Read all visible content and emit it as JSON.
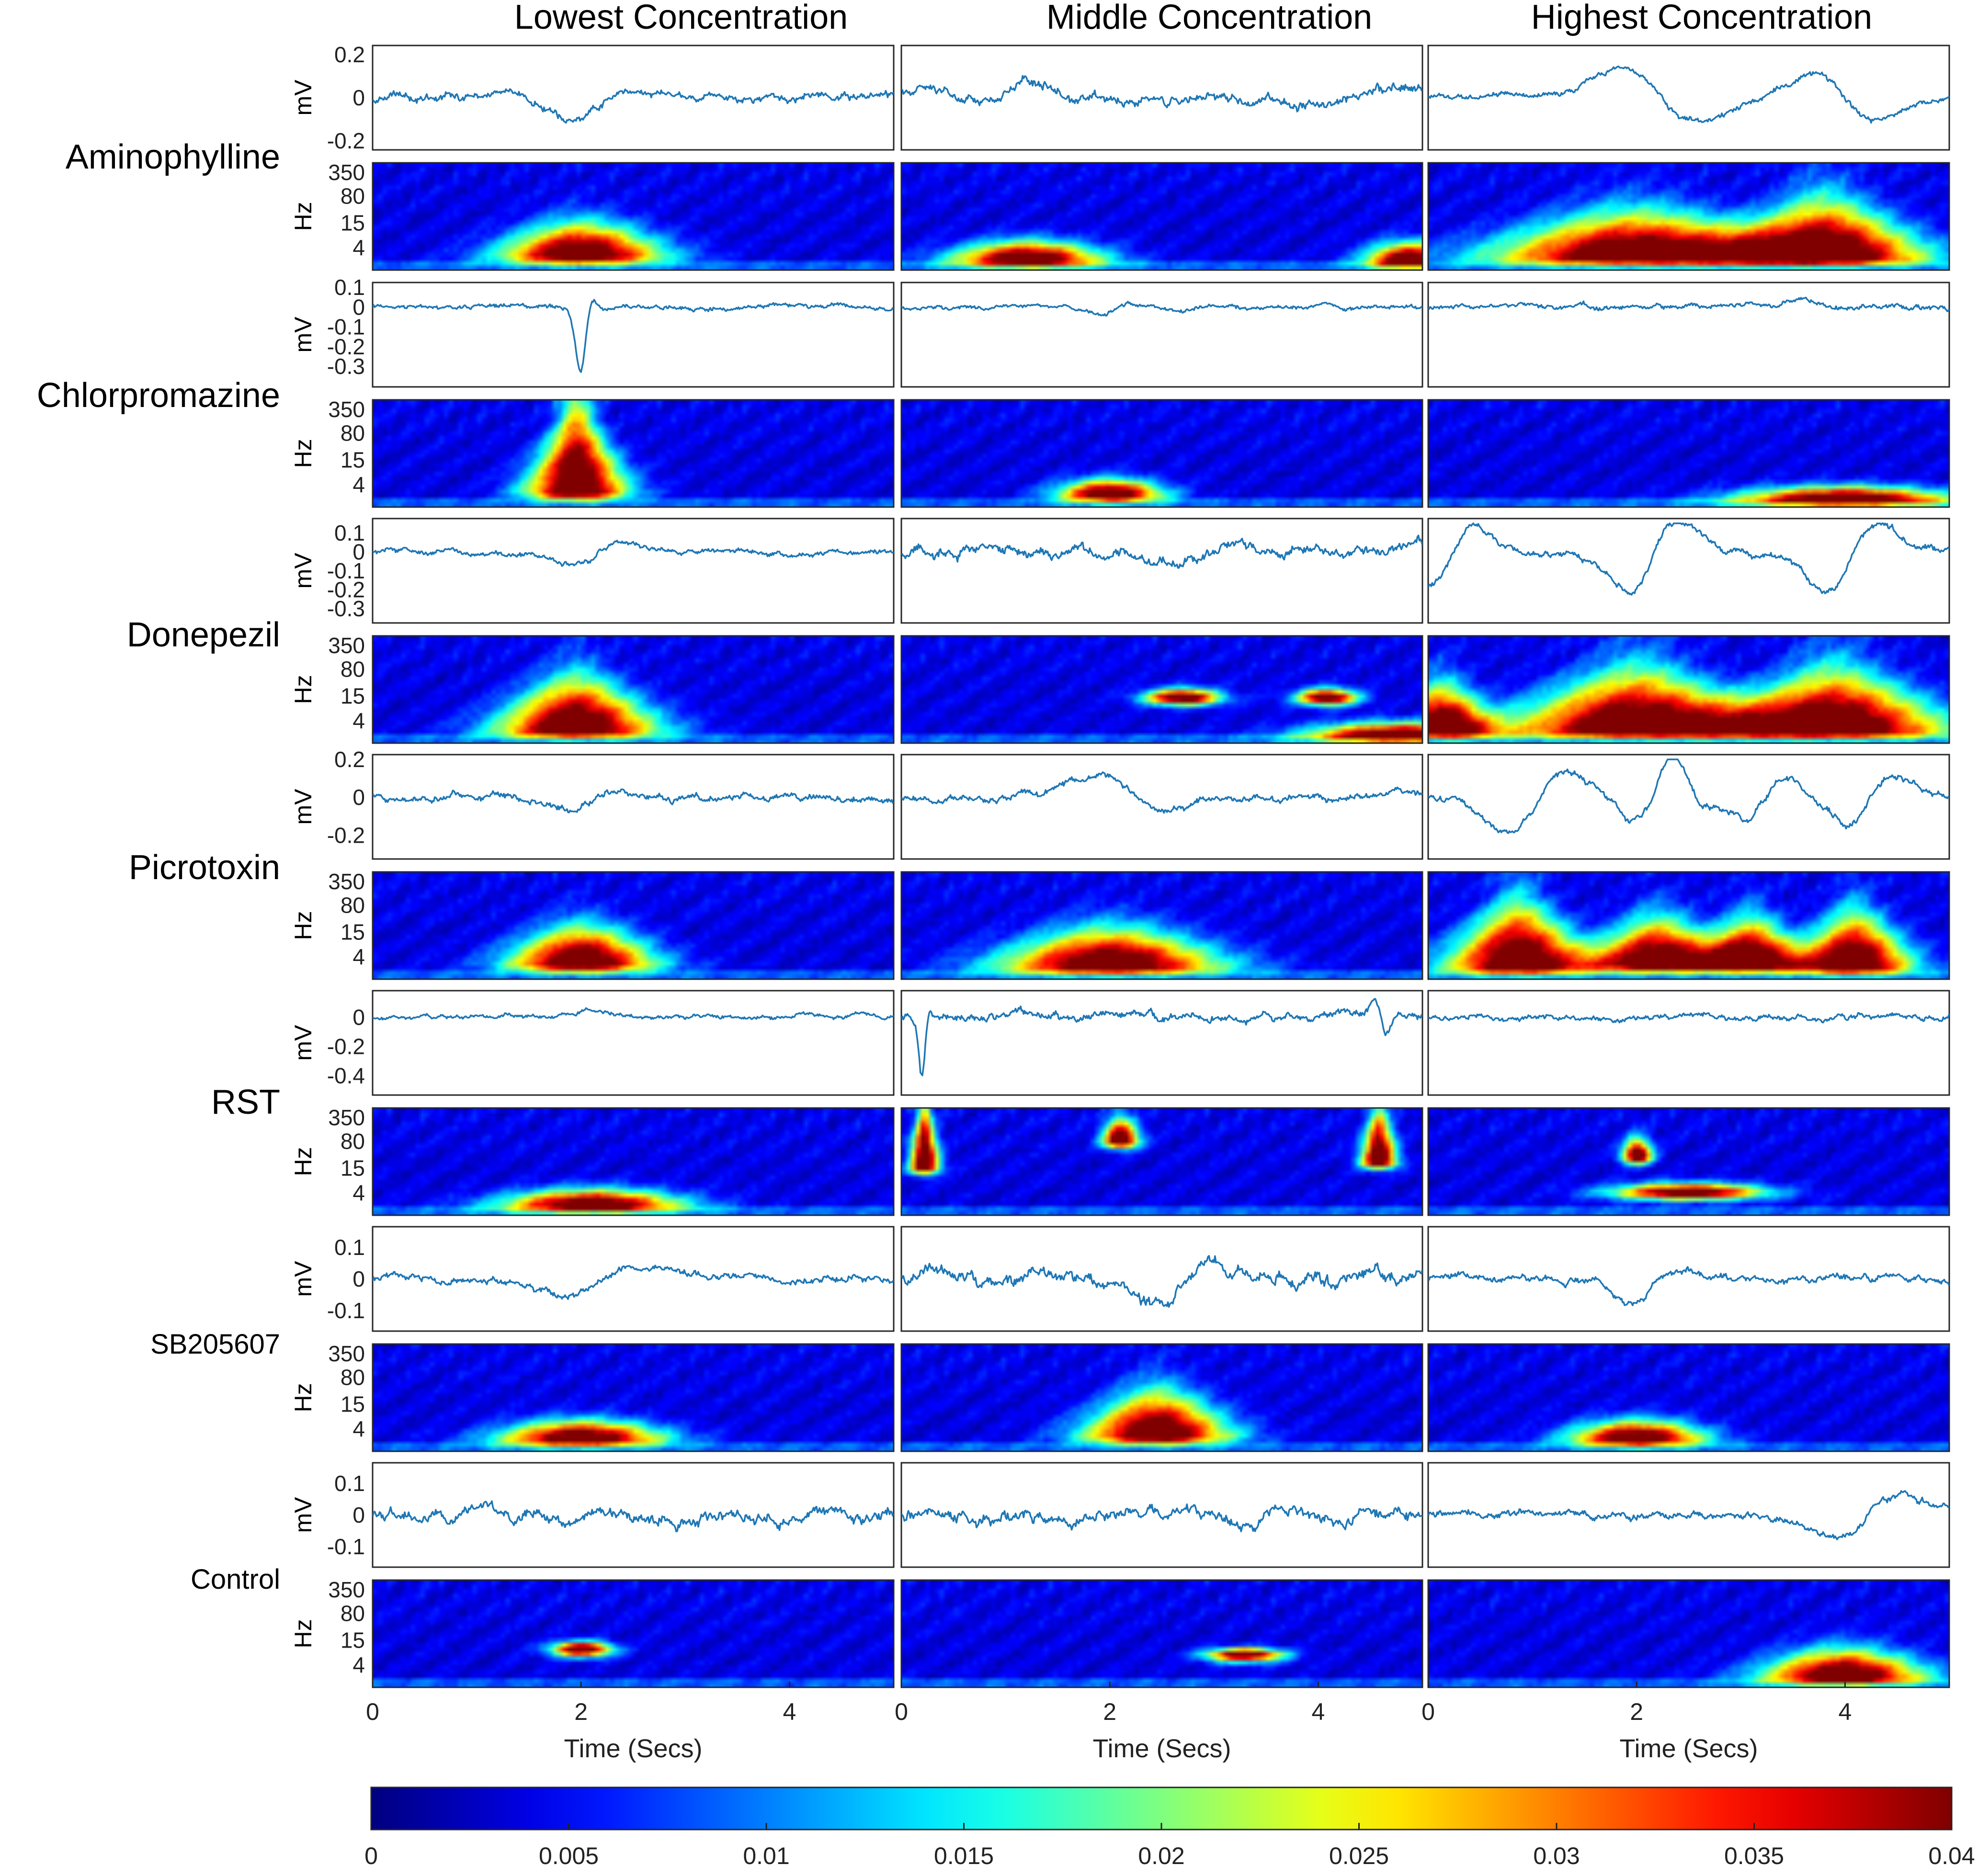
{
  "chart_data": {
    "type": "line",
    "column_titles": [
      "Lowest Concentration",
      "Middle Concentration",
      "Highest Concentration"
    ],
    "row_labels": [
      "Aminophylline",
      "Chlorpromazine",
      "Donepezil",
      "Picrotoxin",
      "RST",
      "SB205607",
      "Control"
    ],
    "trace_ylabel": "mV",
    "spectrogram_ylabel": "Hz",
    "xlabel": "Time (Secs)",
    "xlim": [
      0,
      5
    ],
    "x_ticks": [
      "0",
      "2",
      "4"
    ],
    "spectrogram_ticks": [
      "350",
      "80",
      "15",
      "4"
    ],
    "colorbar": {
      "colormap": "jet",
      "range": [
        0,
        0.04
      ],
      "ticks": [
        "0",
        "0.005",
        "0.01",
        "0.015",
        "0.02",
        "0.025",
        "0.03",
        "0.035",
        "0.04"
      ]
    },
    "rows": [
      {
        "trace_ylim": [
          -0.22,
          0.22
        ],
        "trace_ticks": [
          {
            "v": 0.2,
            "t": "0.2"
          },
          {
            "v": 0,
            "t": "0"
          },
          {
            "v": -0.2,
            "t": "-0.2"
          }
        ],
        "columns": [
          {
            "events": [
              {
                "t": 2.0,
                "a": -0.14,
                "w": 0.22,
                "r": 0.55
              }
            ],
            "noise": 0.02,
            "blobs": [
              {
                "t": 2.0,
                "s": 0.55,
                "f": 0.11,
                "h": 0.22
              }
            ]
          },
          {
            "events": [
              {
                "t": 0.3,
                "a": 0.06,
                "w": 0.2,
                "r": 0.3
              },
              {
                "t": 1.3,
                "a": 0.08,
                "w": 0.2,
                "r": 0.3
              },
              {
                "t": 4.9,
                "a": 0.09,
                "w": 0.2,
                "r": 0.3
              }
            ],
            "noise": 0.025,
            "blobs": [
              {
                "t": 1.2,
                "s": 0.5,
                "f": 0.08,
                "h": 0.12
              },
              {
                "t": 4.9,
                "s": 0.3,
                "f": 0.07,
                "h": 0.12
              }
            ]
          },
          {
            "events": [
              {
                "t": 2.0,
                "a": 0.21,
                "w": 0.32,
                "r": 0.85
              },
              {
                "t": 3.8,
                "a": 0.18,
                "w": 0.28,
                "r": 0.85
              }
            ],
            "noise": 0.015,
            "blobs": [
              {
                "t": 2.0,
                "s": 1.0,
                "f": 0.1,
                "h": 0.3
              },
              {
                "t": 3.8,
                "s": 0.7,
                "f": 0.1,
                "h": 0.38
              }
            ]
          }
        ]
      },
      {
        "trace_ylim": [
          -0.38,
          0.1
        ],
        "trace_ticks": [
          {
            "v": 0.1,
            "t": "0.1"
          },
          {
            "v": 0,
            "t": "0"
          },
          {
            "v": -0.1,
            "t": "-0.1"
          },
          {
            "v": -0.2,
            "t": "-0.2"
          },
          {
            "v": -0.3,
            "t": "-0.3"
          }
        ],
        "columns": [
          {
            "events": [
              {
                "t": 2.0,
                "a": -0.35,
                "w": 0.05,
                "r": 0.25
              }
            ],
            "noise": 0.012,
            "blobs": [
              {
                "t": 1.95,
                "s": 0.35,
                "f": 0.12,
                "h": 0.62
              }
            ]
          },
          {
            "events": [
              {
                "t": 1.95,
                "a": -0.06,
                "w": 0.12,
                "r": 0.4
              }
            ],
            "noise": 0.012,
            "blobs": [
              {
                "t": 2.0,
                "s": 0.35,
                "f": 0.1,
                "h": 0.1
              }
            ]
          },
          {
            "events": [
              {
                "t": 3.6,
                "a": 0.04,
                "w": 0.2,
                "r": 0.3
              }
            ],
            "noise": 0.014,
            "blobs": [
              {
                "t": 4.0,
                "s": 0.7,
                "f": 0.06,
                "h": 0.08
              }
            ]
          }
        ]
      },
      {
        "trace_ylim": [
          -0.35,
          0.15
        ],
        "trace_ticks": [
          {
            "v": 0.1,
            "t": "0.1"
          },
          {
            "v": 0,
            "t": "0"
          },
          {
            "v": -0.1,
            "t": "-0.1"
          },
          {
            "v": -0.2,
            "t": "-0.2"
          },
          {
            "v": -0.3,
            "t": "-0.3"
          }
        ],
        "columns": [
          {
            "events": [
              {
                "t": 2.0,
                "a": -0.1,
                "w": 0.2,
                "r": 0.6
              }
            ],
            "noise": 0.015,
            "blobs": [
              {
                "t": 1.95,
                "s": 0.55,
                "f": 0.1,
                "h": 0.35
              }
            ]
          },
          {
            "events": [
              {
                "t": 2.6,
                "a": -0.1,
                "w": 0.3,
                "r": 0.3
              },
              {
                "t": 4.9,
                "a": 0.1,
                "w": 0.2,
                "r": 0.4
              }
            ],
            "noise": 0.03,
            "blobs": [
              {
                "t": 2.7,
                "s": 0.25,
                "f": 0.42,
                "h": 0.06
              },
              {
                "t": 4.1,
                "s": 0.2,
                "f": 0.42,
                "h": 0.06
              },
              {
                "t": 4.8,
                "s": 0.6,
                "f": 0.06,
                "h": 0.08
              }
            ]
          },
          {
            "events": [
              {
                "t": 0.1,
                "a": -0.26,
                "w": 0.2,
                "r": 0.8
              },
              {
                "t": 2.0,
                "a": -0.33,
                "w": 0.22,
                "r": 0.8
              },
              {
                "t": 3.9,
                "a": -0.3,
                "w": 0.22,
                "r": 0.8
              }
            ],
            "noise": 0.02,
            "blobs": [
              {
                "t": 0.1,
                "s": 0.35,
                "f": 0.1,
                "h": 0.3
              },
              {
                "t": 2.0,
                "s": 0.9,
                "f": 0.1,
                "h": 0.4
              },
              {
                "t": 3.9,
                "s": 0.8,
                "f": 0.1,
                "h": 0.4
              }
            ]
          }
        ]
      },
      {
        "trace_ylim": [
          -0.3,
          0.2
        ],
        "trace_ticks": [
          {
            "v": 0.2,
            "t": "0.2"
          },
          {
            "v": 0,
            "t": "0"
          },
          {
            "v": -0.2,
            "t": "-0.2"
          }
        ],
        "columns": [
          {
            "events": [
              {
                "t": 1.95,
                "a": -0.09,
                "w": 0.18,
                "r": 0.5
              }
            ],
            "noise": 0.02,
            "blobs": [
              {
                "t": 2.0,
                "s": 0.5,
                "f": 0.12,
                "h": 0.25
              }
            ]
          },
          {
            "events": [
              {
                "t": 1.95,
                "a": 0.16,
                "w": 0.28,
                "r": 0.6
              }
            ],
            "noise": 0.02,
            "blobs": [
              {
                "t": 2.0,
                "s": 0.75,
                "f": 0.1,
                "h": 0.25
              }
            ]
          },
          {
            "events": [
              {
                "t": 0.85,
                "a": -0.27,
                "w": 0.25,
                "r": 0.8
              },
              {
                "t": 2.1,
                "a": -0.2,
                "w": 0.2,
                "r": 0.8
              },
              {
                "t": 2.35,
                "a": 0.2,
                "w": 0.15,
                "r": 0.8
              },
              {
                "t": 3.1,
                "a": -0.18,
                "w": 0.18,
                "r": 0.8
              },
              {
                "t": 4.1,
                "a": -0.2,
                "w": 0.2,
                "r": 0.8
              }
            ],
            "noise": 0.02,
            "blobs": [
              {
                "t": 0.85,
                "s": 0.5,
                "f": 0.1,
                "h": 0.42
              },
              {
                "t": 2.2,
                "s": 0.45,
                "f": 0.12,
                "h": 0.3
              },
              {
                "t": 3.1,
                "s": 0.35,
                "f": 0.12,
                "h": 0.3
              },
              {
                "t": 4.1,
                "s": 0.4,
                "f": 0.1,
                "h": 0.35
              }
            ]
          }
        ]
      },
      {
        "trace_ylim": [
          -0.5,
          0.15
        ],
        "trace_ticks": [
          {
            "v": 0,
            "t": "0"
          },
          {
            "v": -0.2,
            "t": "-0.2"
          },
          {
            "v": -0.4,
            "t": "-0.4"
          }
        ],
        "columns": [
          {
            "events": [
              {
                "t": 2.1,
                "a": 0.05,
                "w": 0.2,
                "r": 0.3
              }
            ],
            "noise": 0.015,
            "blobs": [
              {
                "t": 2.1,
                "s": 0.6,
                "f": 0.08,
                "h": 0.1
              }
            ]
          },
          {
            "events": [
              {
                "t": 0.2,
                "a": -0.45,
                "w": 0.03,
                "r": 0.2
              },
              {
                "t": 4.55,
                "a": 0.13,
                "w": 0.05,
                "r": 0.2
              },
              {
                "t": 4.65,
                "a": -0.15,
                "w": 0.05,
                "r": 0.2
              }
            ],
            "noise": 0.03,
            "blobs": [
              {
                "t": 0.2,
                "s": 0.1,
                "f": 0.45,
                "h": 0.45
              },
              {
                "t": 2.1,
                "s": 0.12,
                "f": 0.7,
                "h": 0.15
              },
              {
                "t": 4.6,
                "s": 0.12,
                "f": 0.5,
                "h": 0.35
              }
            ]
          },
          {
            "events": [
              {
                "t": 2.55,
                "a": 0.03,
                "w": 0.2,
                "r": 0.3
              }
            ],
            "noise": 0.02,
            "blobs": [
              {
                "t": 2.0,
                "s": 0.1,
                "f": 0.55,
                "h": 0.12
              },
              {
                "t": 2.5,
                "s": 0.5,
                "f": 0.2,
                "h": 0.06
              }
            ]
          }
        ]
      },
      {
        "trace_ylim": [
          -0.15,
          0.15
        ],
        "trace_ticks": [
          {
            "v": 0.1,
            "t": "0.1"
          },
          {
            "v": 0,
            "t": "0"
          },
          {
            "v": -0.1,
            "t": "-0.1"
          }
        ],
        "columns": [
          {
            "events": [
              {
                "t": 2.0,
                "a": -0.08,
                "w": 0.28,
                "r": 0.75
              }
            ],
            "noise": 0.012,
            "blobs": [
              {
                "t": 2.0,
                "s": 0.55,
                "f": 0.1,
                "h": 0.12
              }
            ]
          },
          {
            "events": [
              {
                "t": 2.5,
                "a": -0.14,
                "w": 0.25,
                "r": 0.8
              }
            ],
            "noise": 0.022,
            "blobs": [
              {
                "t": 2.45,
                "s": 0.5,
                "f": 0.12,
                "h": 0.3
              }
            ]
          },
          {
            "events": [
              {
                "t": 2.0,
                "a": -0.1,
                "w": 0.22,
                "r": 0.5
              }
            ],
            "noise": 0.012,
            "blobs": [
              {
                "t": 2.0,
                "s": 0.45,
                "f": 0.1,
                "h": 0.12
              }
            ]
          }
        ]
      },
      {
        "trace_ylim": [
          -0.15,
          0.15
        ],
        "trace_ticks": [
          {
            "v": 0.1,
            "t": "0.1"
          },
          {
            "v": 0,
            "t": "0"
          },
          {
            "v": -0.1,
            "t": "-0.1"
          }
        ],
        "columns": [
          {
            "events": [
              {
                "t": 2.0,
                "a": -0.05,
                "w": 0.1,
                "r": 0.4
              }
            ],
            "noise": 0.02,
            "blobs": [
              {
                "t": 2.0,
                "s": 0.2,
                "f": 0.35,
                "h": 0.05
              }
            ]
          },
          {
            "events": [
              {
                "t": 3.3,
                "a": -0.06,
                "w": 0.15,
                "r": 0.5
              }
            ],
            "noise": 0.02,
            "blobs": [
              {
                "t": 3.3,
                "s": 0.25,
                "f": 0.3,
                "h": 0.04
              }
            ]
          },
          {
            "events": [
              {
                "t": 4.0,
                "a": -0.12,
                "w": 0.3,
                "r": 0.85
              }
            ],
            "noise": 0.012,
            "blobs": [
              {
                "t": 4.0,
                "s": 0.55,
                "f": 0.08,
                "h": 0.18
              }
            ]
          }
        ]
      }
    ]
  }
}
